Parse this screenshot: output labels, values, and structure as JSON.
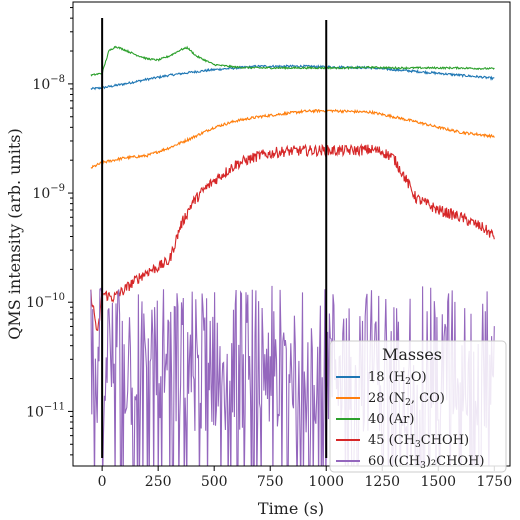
{
  "chart_data": {
    "type": "line",
    "xlabel": "Time (s)",
    "ylabel": "QMS intensity (arb. units)",
    "xlim": [
      -130,
      1820
    ],
    "ylim_log10": [
      -11.5,
      -7.25
    ],
    "yscale": "log",
    "x_ticks": [
      0,
      250,
      500,
      750,
      1000,
      1250,
      1500,
      1750
    ],
    "x_tick_labels": [
      "0",
      "250",
      "500",
      "750",
      "1000",
      "1250",
      "1500",
      "1750"
    ],
    "y_tick_exponents": [
      -11,
      -10,
      -9,
      -8
    ],
    "y_tick_labels": [
      "10",
      "10",
      "10",
      "10"
    ],
    "y_tick_sups": [
      "−11",
      "−10",
      "−9",
      "−8"
    ],
    "vertical_lines": [
      0,
      1000
    ],
    "legend": {
      "title": "Masses",
      "placement": "lower right",
      "entries": [
        {
          "prefix": "18 (H",
          "sub": "2",
          "suffix": "O)",
          "color": "#1f77b4"
        },
        {
          "prefix": "28 (N",
          "sub": "2",
          "suffix": ", CO)",
          "color": "#ff7f0e"
        },
        {
          "prefix": "40 (Ar)",
          "sub": "",
          "suffix": "",
          "color": "#2ca02c"
        },
        {
          "prefix": "45 (CH",
          "sub": "3",
          "suffix": "CHOH)",
          "color": "#d62728"
        },
        {
          "prefix": "60 ((CH",
          "sub": "3",
          "suffix": ")₂CHOH)",
          "color": "#9467bd"
        }
      ]
    },
    "series": [
      {
        "color": "#1f77b4",
        "noise": 0.01,
        "x": [
          -50,
          0,
          100,
          200,
          300,
          400,
          500,
          600,
          700,
          800,
          900,
          1000,
          1100,
          1200,
          1300,
          1400,
          1500,
          1600,
          1700,
          1750
        ],
        "y": [
          9e-09,
          9.2e-09,
          1e-08,
          1.1e-08,
          1.2e-08,
          1.28e-08,
          1.35e-08,
          1.4e-08,
          1.45e-08,
          1.45e-08,
          1.45e-08,
          1.43e-08,
          1.42e-08,
          1.4e-08,
          1.35e-08,
          1.3e-08,
          1.25e-08,
          1.2e-08,
          1.15e-08,
          1.12e-08
        ]
      },
      {
        "color": "#ff7f0e",
        "noise": 0.012,
        "x": [
          -50,
          0,
          100,
          200,
          300,
          400,
          500,
          600,
          700,
          800,
          900,
          1000,
          1100,
          1200,
          1300,
          1400,
          1500,
          1600,
          1700,
          1750
        ],
        "y": [
          1.7e-09,
          1.9e-09,
          2.1e-09,
          2.2e-09,
          2.6e-09,
          3.2e-09,
          4e-09,
          4.6e-09,
          5e-09,
          5.3e-09,
          5.6e-09,
          5.7e-09,
          5.6e-09,
          5.5e-09,
          5e-09,
          4.5e-09,
          4e-09,
          3.6e-09,
          3.4e-09,
          3.3e-09
        ]
      },
      {
        "color": "#2ca02c",
        "noise": 0.008,
        "x": [
          -50,
          0,
          30,
          60,
          100,
          150,
          200,
          250,
          300,
          350,
          380,
          420,
          500,
          600,
          700,
          800,
          900,
          1000,
          1100,
          1200,
          1300,
          1400,
          1500,
          1600,
          1700,
          1750
        ],
        "y": [
          1.2e-08,
          1.25e-08,
          2e-08,
          2.2e-08,
          2.05e-08,
          1.85e-08,
          1.7e-08,
          1.65e-08,
          1.8e-08,
          2.05e-08,
          2.15e-08,
          1.8e-08,
          1.5e-08,
          1.42e-08,
          1.4e-08,
          1.4e-08,
          1.4e-08,
          1.4e-08,
          1.4e-08,
          1.42e-08,
          1.4e-08,
          1.4e-08,
          1.4e-08,
          1.4e-08,
          1.38e-08,
          1.38e-08
        ]
      },
      {
        "color": "#d62728",
        "noise": 0.05,
        "x": [
          -50,
          -20,
          0,
          50,
          100,
          150,
          200,
          250,
          300,
          350,
          400,
          450,
          500,
          550,
          600,
          700,
          800,
          900,
          1000,
          1100,
          1200,
          1250,
          1300,
          1350,
          1400,
          1500,
          1600,
          1700,
          1750
        ],
        "y": [
          1.2e-10,
          5e-11,
          1.2e-10,
          1.1e-10,
          1.3e-10,
          1.6e-10,
          1.9e-10,
          2.1e-10,
          2.4e-10,
          5e-10,
          8e-10,
          1.05e-09,
          1.3e-09,
          1.55e-09,
          1.85e-09,
          2.2e-09,
          2.4e-09,
          2.45e-09,
          2.45e-09,
          2.45e-09,
          2.5e-09,
          2.4e-09,
          2.1e-09,
          1.4e-09,
          9e-10,
          7e-10,
          6e-10,
          4.8e-10,
          4e-10
        ]
      },
      {
        "color": "#9467bd",
        "noise": 0.35,
        "x": [
          -50,
          0,
          250,
          500,
          750,
          1000,
          1250,
          1500,
          1750
        ],
        "y": [
          3e-11,
          3e-11,
          3e-11,
          3e-11,
          3e-11,
          3e-11,
          3e-11,
          3e-11,
          3e-11
        ]
      }
    ]
  }
}
